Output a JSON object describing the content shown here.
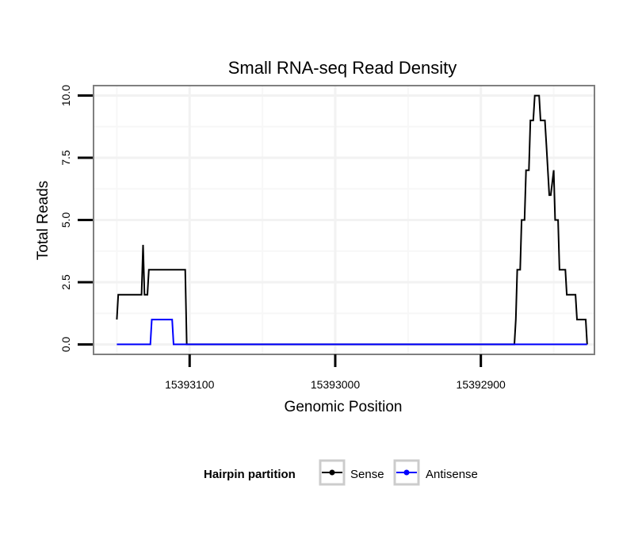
{
  "chart_data": {
    "type": "line",
    "title": "Small RNA-seq Read Density",
    "xlabel": "Genomic Position",
    "ylabel": "Total Reads",
    "x_reversed": true,
    "xlim": [
      15393166,
      15392822
    ],
    "ylim": [
      -0.4,
      10.4
    ],
    "x_ticks": [
      15393100,
      15393000,
      15392900
    ],
    "x_tick_labels": [
      "15393100",
      "15393000",
      "15392900"
    ],
    "y_ticks": [
      0,
      2.5,
      5,
      7.5,
      10
    ],
    "y_tick_labels": [
      "0.0",
      "2.5",
      "5.0",
      "7.5",
      "10.0"
    ],
    "grid": true,
    "legend": {
      "title": "Hairpin partition",
      "placement": "bottom",
      "entries": [
        "Sense",
        "Antisense"
      ]
    },
    "series": [
      {
        "name": "Sense",
        "color": "#000000",
        "x": [
          15393150,
          15393149,
          15393133,
          15393132,
          15393131,
          15393129,
          15393128,
          15393126,
          15393125,
          15393103,
          15393102,
          15393101,
          15393100,
          15392877,
          15392876,
          15392875,
          15392873,
          15392872,
          15392870,
          15392869,
          15392867,
          15392866,
          15392864,
          15392863,
          15392862,
          15392860,
          15392859,
          15392856,
          15392855,
          15392853,
          15392852,
          15392850,
          15392849,
          15392847,
          15392846,
          15392845,
          15392844,
          15392842,
          15392841,
          15392839,
          15392838,
          15392835,
          15392834,
          15392831,
          15392830,
          15392828,
          15392827
        ],
        "values": [
          1,
          2,
          2,
          4,
          2,
          2,
          3,
          3,
          3,
          3,
          0,
          0,
          0,
          0,
          1,
          3,
          3,
          5,
          5,
          7,
          7,
          9,
          9,
          10,
          10,
          10,
          9,
          9,
          8,
          6,
          6,
          7,
          5,
          5,
          3,
          3,
          3,
          3,
          2,
          2,
          2,
          2,
          1,
          1,
          1,
          1,
          0
        ]
      },
      {
        "name": "Antisense",
        "color": "#0000ff",
        "x": [
          15393150,
          15393127,
          15393126,
          15393125,
          15393112,
          15393111,
          15393110,
          15393100,
          15392827
        ],
        "values": [
          0,
          0,
          1,
          1,
          1,
          0,
          0,
          0,
          0
        ]
      }
    ]
  }
}
